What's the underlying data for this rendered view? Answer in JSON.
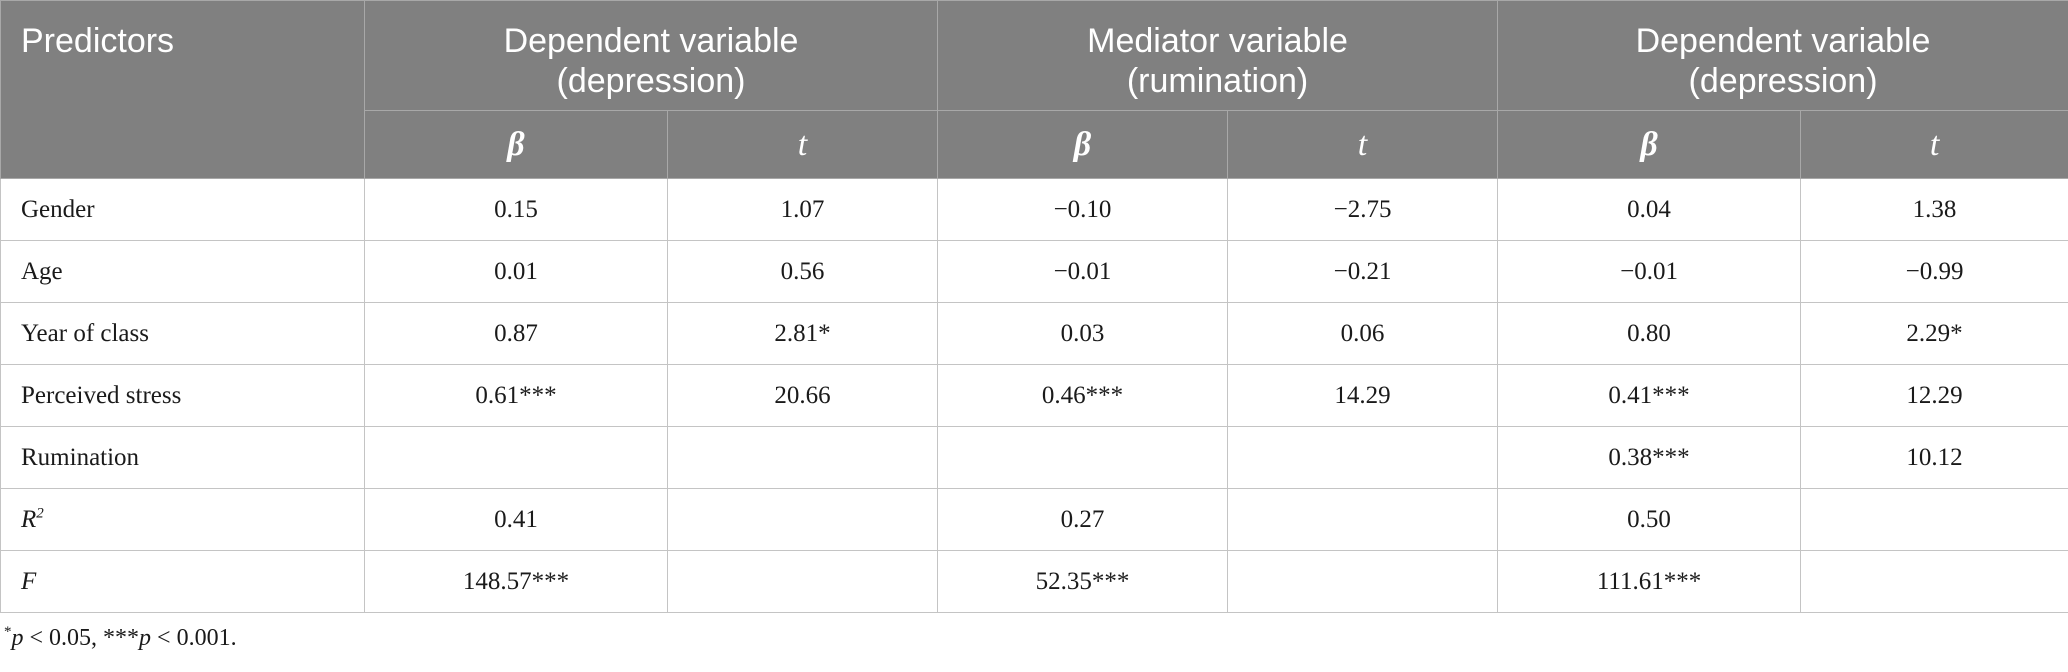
{
  "header": {
    "predictors": "Predictors",
    "groups": [
      {
        "line1": "Dependent variable",
        "line2": "(depression)"
      },
      {
        "line1": "Mediator variable",
        "line2": "(rumination)"
      },
      {
        "line1": "Dependent variable",
        "line2": "(depression)"
      }
    ],
    "beta": "β",
    "t": "t"
  },
  "rows": [
    {
      "label": "Gender",
      "cells": [
        "0.15",
        "1.07",
        "−0.10",
        "−2.75",
        "0.04",
        "1.38"
      ]
    },
    {
      "label": "Age",
      "cells": [
        "0.01",
        "0.56",
        "−0.01",
        "−0.21",
        "−0.01",
        "−0.99"
      ]
    },
    {
      "label": "Year of class",
      "cells": [
        "0.87",
        "2.81*",
        "0.03",
        "0.06",
        "0.80",
        "2.29*"
      ]
    },
    {
      "label": "Perceived stress",
      "cells": [
        "0.61***",
        "20.66",
        "0.46***",
        "14.29",
        "0.41***",
        "12.29"
      ]
    },
    {
      "label": "Rumination",
      "cells": [
        "",
        "",
        "",
        "",
        "0.38***",
        "10.12"
      ]
    },
    {
      "label_main": "R",
      "label_sup": "2",
      "cells": [
        "0.41",
        "",
        "0.27",
        "",
        "0.50",
        ""
      ]
    },
    {
      "label": "F",
      "cells": [
        "148.57***",
        "",
        "52.35***",
        "",
        "111.61***",
        ""
      ]
    }
  ],
  "footnote": {
    "star1": "*",
    "p1": "p",
    "text1": " < 0.05, ***",
    "p2": "p",
    "text2": " < 0.001."
  }
}
